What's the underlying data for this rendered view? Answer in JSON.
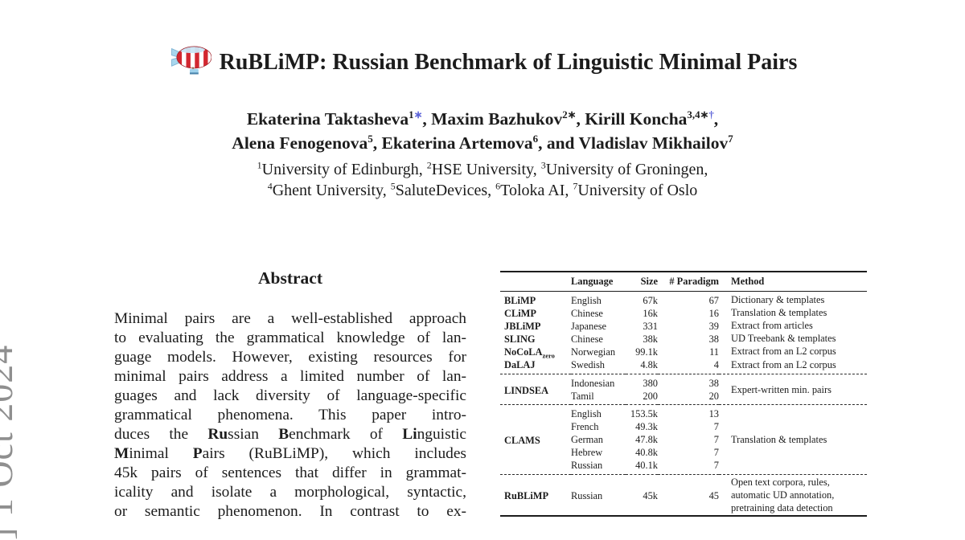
{
  "colors": {
    "link": "#5b62d8",
    "watermark": "#8f8f8f",
    "rule": "#1c1c1c",
    "logo_red": "#d22730",
    "logo_blue": "#a8d7ee"
  },
  "watermark": {
    "text": "] 1 Oct 2024"
  },
  "title": {
    "text": "RuBLiMP: Russian Benchmark of Linguistic Minimal Pairs",
    "logo": "blimp-airship-emoji"
  },
  "authors": {
    "line1": [
      {
        "t": "Ekaterina Taktasheva"
      },
      {
        "t": "1",
        "sup": true
      },
      {
        "t": "∗",
        "sup": true,
        "c": "link"
      },
      {
        "t": ", Maxim Bazhukov"
      },
      {
        "t": "2∗",
        "sup": true
      },
      {
        "t": ", Kirill Koncha"
      },
      {
        "t": "3,4∗",
        "sup": true
      },
      {
        "t": "†",
        "sup": true,
        "c": "link"
      },
      {
        "t": ","
      }
    ],
    "line2": [
      {
        "t": "Alena Fenogenova"
      },
      {
        "t": "5",
        "sup": true
      },
      {
        "t": ", Ekaterina Artemova"
      },
      {
        "t": "6",
        "sup": true
      },
      {
        "t": ", and Vladislav Mikhailov"
      },
      {
        "t": "7",
        "sup": true
      }
    ]
  },
  "affiliations": {
    "line1": [
      {
        "t": "1",
        "sup": true
      },
      {
        "t": "University of Edinburgh, "
      },
      {
        "t": "2",
        "sup": true
      },
      {
        "t": "HSE University, "
      },
      {
        "t": "3",
        "sup": true
      },
      {
        "t": "University of Groningen,"
      }
    ],
    "line2": [
      {
        "t": "4",
        "sup": true
      },
      {
        "t": "Ghent University, "
      },
      {
        "t": "5",
        "sup": true
      },
      {
        "t": "SaluteDevices, "
      },
      {
        "t": "6",
        "sup": true
      },
      {
        "t": "Toloka AI, "
      },
      {
        "t": "7",
        "sup": true
      },
      {
        "t": "University of Oslo"
      }
    ]
  },
  "abstract": {
    "heading": "Abstract",
    "lines": [
      [
        {
          "t": "Minimal pairs are a well-established approach"
        }
      ],
      [
        {
          "t": "to evaluating the grammatical knowledge of lan-"
        }
      ],
      [
        {
          "t": "guage models. However, existing resources for"
        }
      ],
      [
        {
          "t": "minimal pairs address a limited number of lan-"
        }
      ],
      [
        {
          "t": "guages and lack diversity of language-specific"
        }
      ],
      [
        {
          "t": "grammatical phenomena. This paper intro-"
        }
      ],
      [
        {
          "t": "duces the "
        },
        {
          "t": "Ru",
          "b": true
        },
        {
          "t": "ssian "
        },
        {
          "t": "B",
          "b": true
        },
        {
          "t": "enchmark of "
        },
        {
          "t": "Li",
          "b": true
        },
        {
          "t": "nguistic"
        }
      ],
      [
        {
          "t": "M",
          "b": true
        },
        {
          "t": "inimal "
        },
        {
          "t": "P",
          "b": true
        },
        {
          "t": "airs (RuBLiMP), which includes"
        }
      ],
      [
        {
          "t": "45k pairs of sentences that differ in grammat-"
        }
      ],
      [
        {
          "t": "icality and isolate a morphological, syntactic,"
        }
      ],
      [
        {
          "t": "or semantic phenomenon. In contrast to ex-"
        }
      ]
    ]
  },
  "table": {
    "header": {
      "name": "",
      "language": "Language",
      "size": "Size",
      "paradigm": "# Paradigm",
      "method": "Method"
    },
    "sections": [
      {
        "groups": [
          {
            "name": "BLiMP",
            "rows": [
              [
                "English",
                "67k",
                "67"
              ]
            ],
            "method": [
              "Dictionary & templates"
            ]
          },
          {
            "name": "CLiMP",
            "rows": [
              [
                "Chinese",
                "16k",
                "16"
              ]
            ],
            "method": [
              "Translation & templates"
            ]
          },
          {
            "name": "JBLiMP",
            "rows": [
              [
                "Japanese",
                "331",
                "39"
              ]
            ],
            "method": [
              "Extract from articles"
            ]
          },
          {
            "name": "SLING",
            "rows": [
              [
                "Chinese",
                "38k",
                "38"
              ]
            ],
            "method": [
              "UD Treebank & templates"
            ]
          },
          {
            "name": "NoCoLA",
            "subscript": "zero",
            "rows": [
              [
                "Norwegian",
                "99.1k",
                "11"
              ]
            ],
            "method": [
              "Extract from an L2 corpus"
            ]
          },
          {
            "name": "DaLAJ",
            "rows": [
              [
                "Swedish",
                "4.8k",
                "4"
              ]
            ],
            "method": [
              "Extract from an L2 corpus"
            ]
          }
        ]
      },
      {
        "groups": [
          {
            "name": "LINDSEA",
            "rows": [
              [
                "Indonesian",
                "380",
                "38"
              ],
              [
                "Tamil",
                "200",
                "20"
              ]
            ],
            "method": [
              "Expert-written min. pairs"
            ]
          }
        ]
      },
      {
        "groups": [
          {
            "name": "CLAMS",
            "rows": [
              [
                "English",
                "153.5k",
                "13"
              ],
              [
                "French",
                "49.3k",
                "7"
              ],
              [
                "German",
                "47.8k",
                "7"
              ],
              [
                "Hebrew",
                "40.8k",
                "7"
              ],
              [
                "Russian",
                "40.1k",
                "7"
              ]
            ],
            "method": [
              "Translation & templates"
            ]
          }
        ]
      },
      {
        "groups": [
          {
            "name": "RuBLiMP",
            "rows": [
              [
                "Russian",
                "45k",
                "45"
              ]
            ],
            "method": [
              "Open text corpora, rules,",
              "automatic UD annotation,",
              "pretraining data detection"
            ]
          }
        ]
      }
    ]
  }
}
